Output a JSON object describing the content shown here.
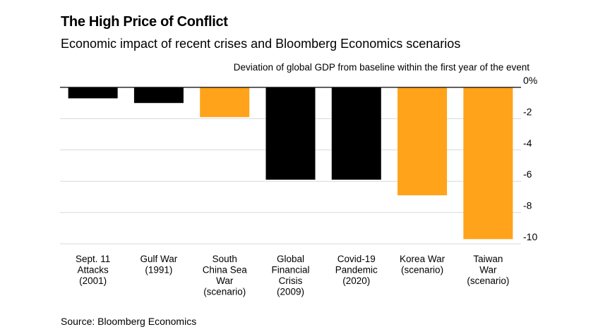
{
  "header": {
    "title": "The High Price of Conflict",
    "subtitle": "Economic impact of recent crises and Bloomberg Economics scenarios"
  },
  "footer": {
    "source": "Source: Bloomberg Economics"
  },
  "colors": {
    "historical": "#000000",
    "scenario": "#ffa31a",
    "gridline": "#d9d9d9",
    "axis": "#000000"
  },
  "chart_data": {
    "type": "bar",
    "ylabel": "Deviation of global GDP from baseline within the first year of the event",
    "ylim": [
      -10,
      0
    ],
    "yticks": [
      0,
      -2,
      -4,
      -6,
      -8,
      -10
    ],
    "ytick_labels": [
      "0%",
      "-2",
      "-4",
      "-6",
      "-8",
      "-10"
    ],
    "y_axis_side": "right",
    "grid": true,
    "categories": [
      [
        "Sept. 11",
        "Attacks",
        "(2001)"
      ],
      [
        "Gulf War",
        "(1991)"
      ],
      [
        "South",
        "China Sea",
        "War",
        "(scenario)"
      ],
      [
        "Global",
        "Financial",
        "Crisis",
        "(2009)"
      ],
      [
        "Covid-19",
        "Pandemic",
        "(2020)"
      ],
      [
        "Korea War",
        "(scenario)"
      ],
      [
        "Taiwan",
        "War",
        "(scenario)"
      ]
    ],
    "values": [
      -0.7,
      -1.0,
      -1.9,
      -5.9,
      -5.9,
      -6.9,
      -9.7
    ],
    "bar_kind": [
      "historical",
      "historical",
      "scenario",
      "historical",
      "historical",
      "scenario",
      "scenario"
    ]
  }
}
